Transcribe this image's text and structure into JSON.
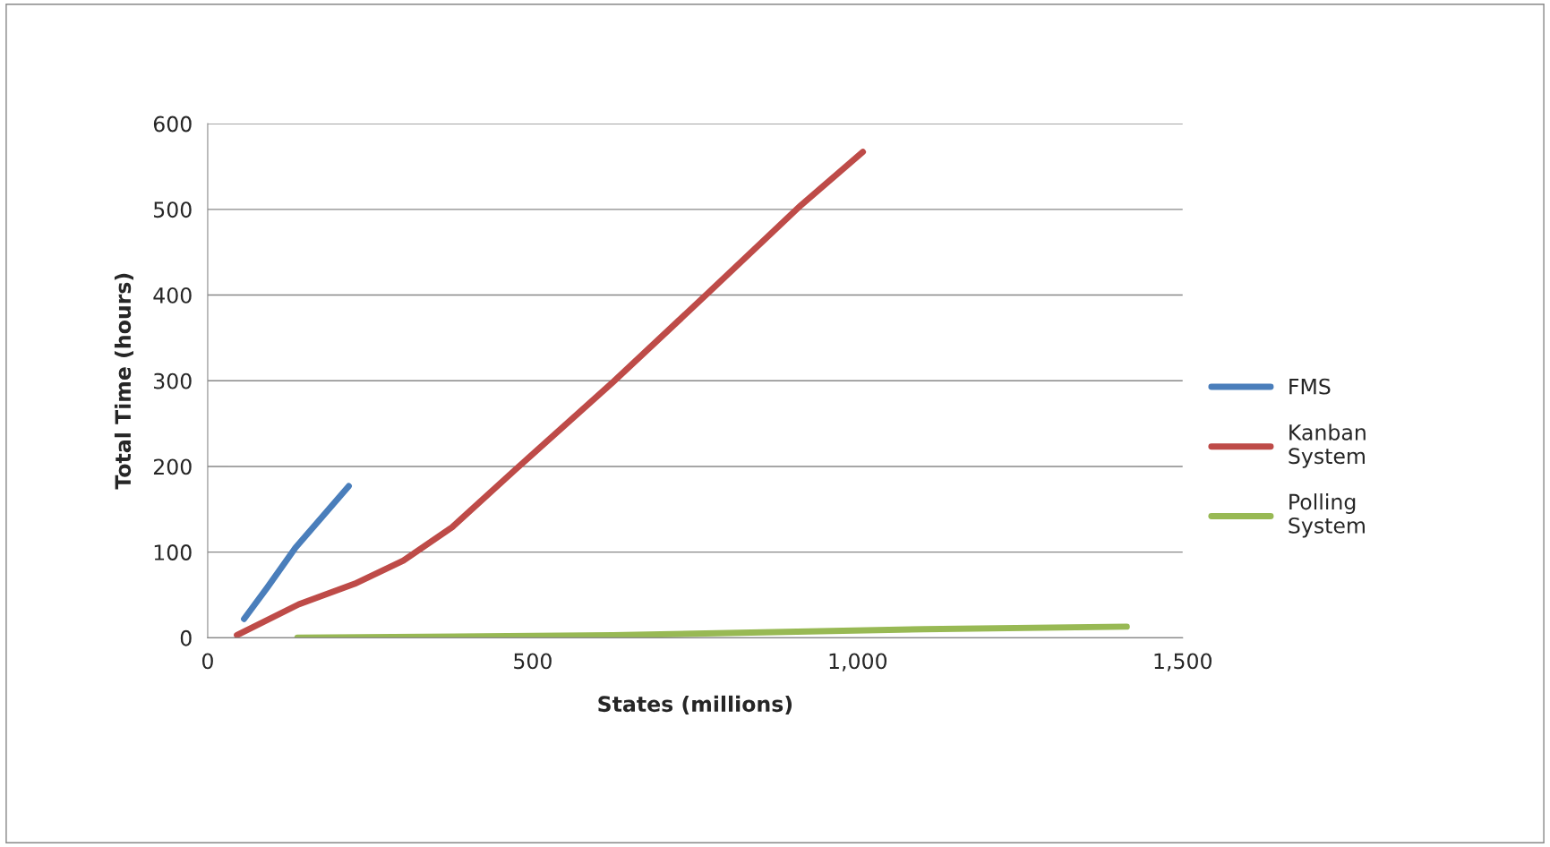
{
  "chart_data": {
    "type": "line",
    "xlabel": "States (millions)",
    "ylabel": "Total Time (hours)",
    "xlim": [
      0,
      1500
    ],
    "xticks": [
      0,
      500,
      {
        "value": 1000,
        "label": "1,000"
      },
      {
        "value": 1500,
        "label": "1,500"
      }
    ],
    "ylim": [
      0,
      600
    ],
    "yticks": [
      0,
      100,
      200,
      300,
      400,
      500,
      600
    ],
    "grid": "y",
    "legend": "right",
    "marker": "none",
    "line_style": "solid",
    "series": [
      {
        "name": "FMS",
        "color": "#4a7ebb",
        "x": [
          56,
          92,
          135,
          217
        ],
        "values": [
          22,
          59,
          105,
          177
        ]
      },
      {
        "name": "Kanban\nSystem",
        "color": "#be4b48",
        "x": [
          45,
          140,
          226,
          301,
          376,
          473,
          623,
          768,
          913,
          1008
        ],
        "values": [
          3,
          39,
          63,
          90,
          129,
          196,
          298,
          401,
          505,
          567
        ]
      },
      {
        "name": "Polling\nSystem",
        "color": "#98b954",
        "x": [
          138,
          623,
          1101,
          1414
        ],
        "values": [
          0,
          3,
          10,
          13
        ]
      }
    ]
  }
}
